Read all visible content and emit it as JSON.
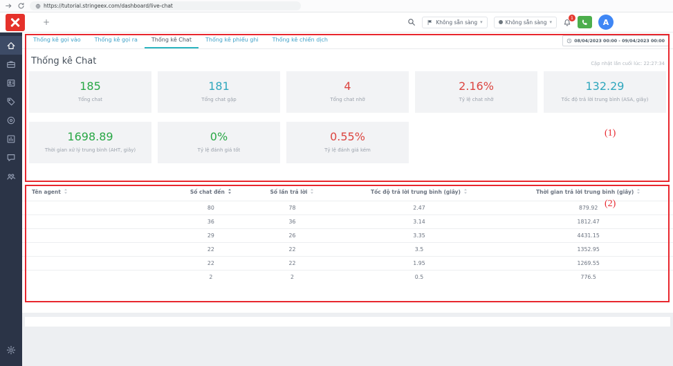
{
  "browser": {
    "url": "https://tutorial.stringeex.com/dashboard/live-chat"
  },
  "header": {
    "new_tab_label": "+",
    "status_dropdowns": [
      {
        "label": "Không sẵn sàng",
        "icon": "flag-icon"
      },
      {
        "label": "Không sẵn sàng",
        "icon": "status-dot-icon"
      }
    ],
    "bell_badge": "1",
    "avatar_initial": "A"
  },
  "sidebar": {
    "items": [
      {
        "name": "home",
        "active": true
      },
      {
        "name": "briefcase",
        "active": false
      },
      {
        "name": "contacts",
        "active": false
      },
      {
        "name": "tag",
        "active": false
      },
      {
        "name": "target",
        "active": false
      },
      {
        "name": "reports",
        "active": false
      },
      {
        "name": "chat",
        "active": false
      },
      {
        "name": "team",
        "active": false
      }
    ],
    "bottom_item": {
      "name": "settings"
    }
  },
  "tabs": [
    {
      "label": "Thống kê gọi vào",
      "active": false
    },
    {
      "label": "Thống kê gọi ra",
      "active": false
    },
    {
      "label": "Thống kê Chat",
      "active": true
    },
    {
      "label": "Thống kê phiếu ghi",
      "active": false
    },
    {
      "label": "Thống kê chiến dịch",
      "active": false
    }
  ],
  "date_range": "08/04/2023 00:00 - 09/04/2023 00:00",
  "page": {
    "title": "Thống kê Chat",
    "last_updated": "Cập nhật lần cuối lúc: 22:27:34"
  },
  "colors": {
    "green": "#28a745",
    "teal": "#2fa7bd",
    "red": "#dc4540"
  },
  "stats": [
    {
      "value": "185",
      "label": "Tổng chat",
      "color": "green"
    },
    {
      "value": "181",
      "label": "Tổng chat gặp",
      "color": "teal"
    },
    {
      "value": "4",
      "label": "Tổng chat nhỡ",
      "color": "red"
    },
    {
      "value": "2.16%",
      "label": "Tỷ lệ chat nhỡ",
      "color": "red"
    },
    {
      "value": "132.29",
      "label": "Tốc độ trả lời trung bình (ASA, giây)",
      "color": "teal"
    },
    {
      "value": "1698.89",
      "label": "Thời gian xử lý trung bình (AHT, giây)",
      "color": "green"
    },
    {
      "value": "0%",
      "label": "Tỷ lệ đánh giá tốt",
      "color": "green"
    },
    {
      "value": "0.55%",
      "label": "Tỷ lệ đánh giá kém",
      "color": "red"
    }
  ],
  "table": {
    "sorted_column": 1,
    "columns": [
      "Tên agent",
      "Số chat đến",
      "Số lần trả lời",
      "Tốc độ trả lời trung bình (giây)",
      "Thời gian trả lời trung bình (giây)"
    ],
    "rows": [
      [
        "",
        "80",
        "78",
        "2.47",
        "879.92"
      ],
      [
        "",
        "36",
        "36",
        "3.14",
        "1812.47"
      ],
      [
        "",
        "29",
        "26",
        "3.35",
        "4431.15"
      ],
      [
        "",
        "22",
        "22",
        "3.5",
        "1352.95"
      ],
      [
        "",
        "22",
        "22",
        "1.95",
        "1269.55"
      ],
      [
        "",
        "2",
        "2",
        "0.5",
        "776.5"
      ]
    ]
  },
  "annotations": {
    "color": "#e8262d",
    "box1_label": "(1)",
    "box2_label": "(2)"
  }
}
